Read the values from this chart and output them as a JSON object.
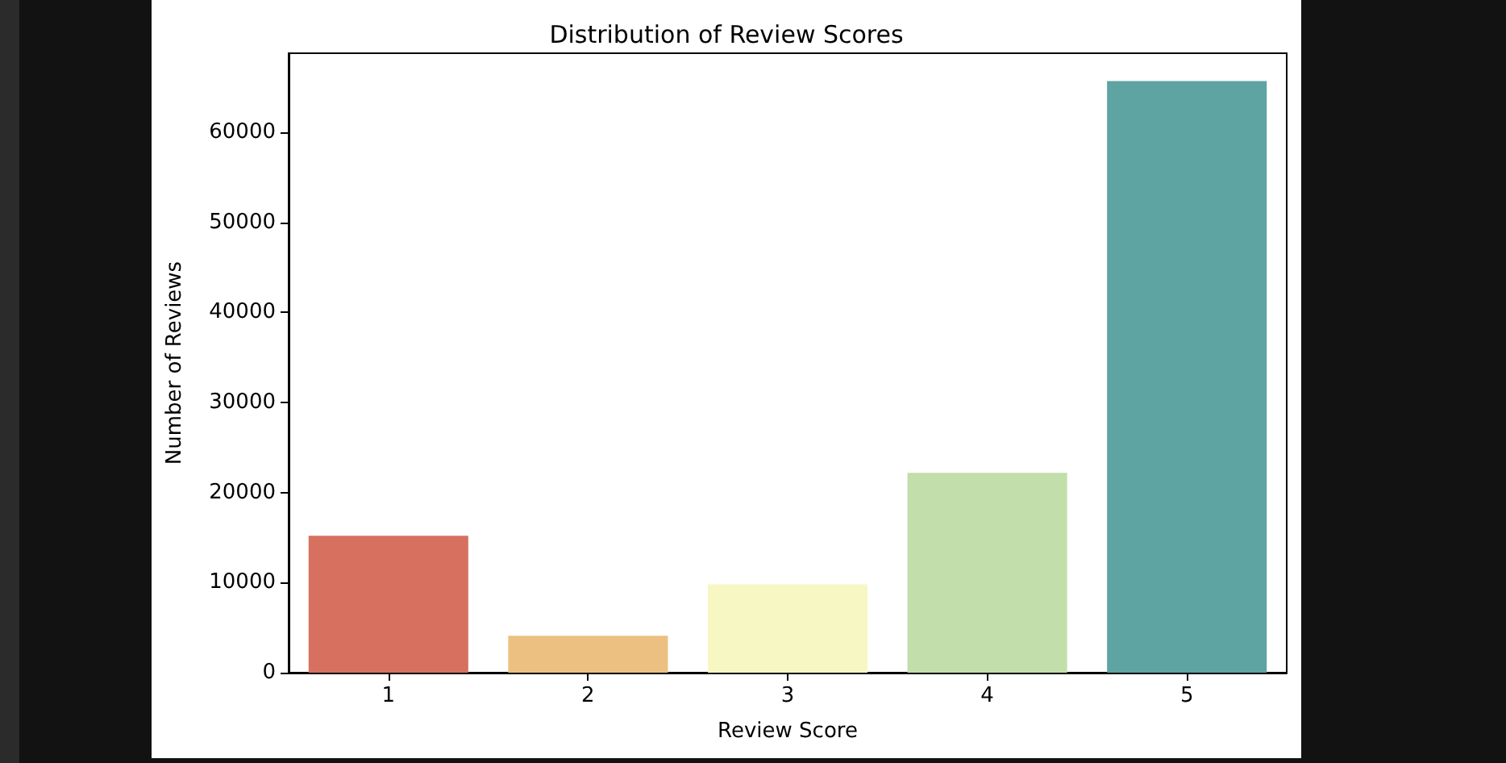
{
  "chart_data": {
    "type": "bar",
    "title": "Distribution of Review Scores",
    "xlabel": "Review Score",
    "ylabel": "Number of Reviews",
    "categories": [
      "1",
      "2",
      "3",
      "4",
      "5"
    ],
    "values": [
      15200,
      4100,
      9800,
      22200,
      65700
    ],
    "colors": [
      "#d7705f",
      "#ecc081",
      "#f7f7c3",
      "#c2deaa",
      "#5ea4a2"
    ],
    "ylim": [
      0,
      68800
    ],
    "yticks": [
      0,
      10000,
      20000,
      30000,
      40000,
      50000,
      60000
    ],
    "grid": false
  }
}
